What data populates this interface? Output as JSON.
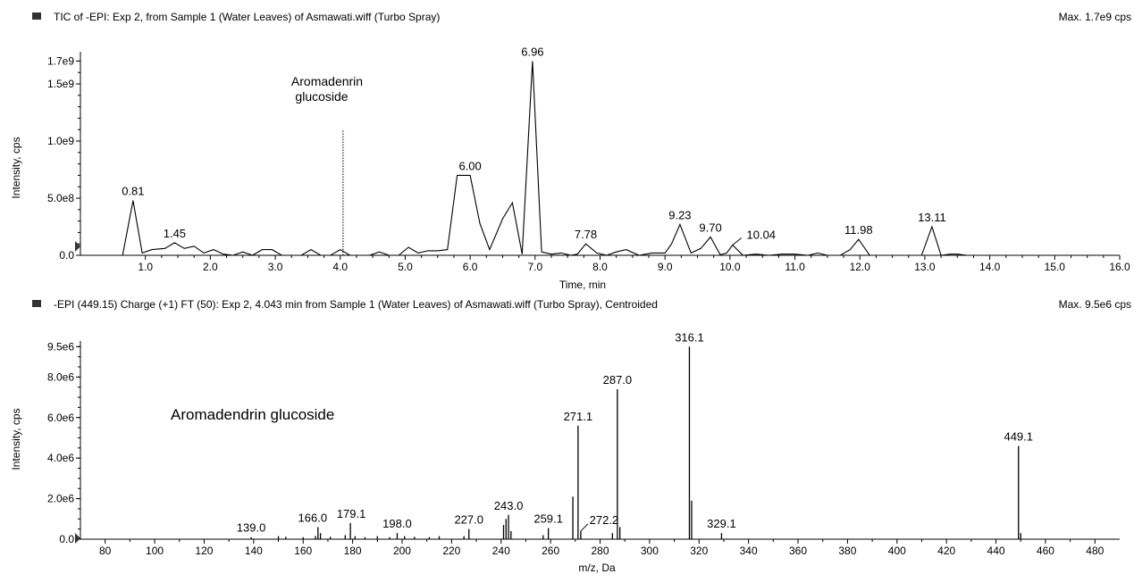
{
  "colors": {
    "ink": "#000000",
    "background": "#ffffff",
    "marker": "#333333"
  },
  "chart_data": [
    {
      "type": "line",
      "panel_title": "TIC of -EPI: Exp 2, from Sample 1 (Water Leaves) of Asmawati.wiff (Turbo Spray)",
      "max_label": "Max. 1.7e9 cps",
      "xlabel": "Time, min",
      "ylabel": "Intensity, cps",
      "xlim": [
        0,
        16
      ],
      "ylim": [
        0,
        1750000000.0
      ],
      "x_ticks": [
        1.0,
        2.0,
        3.0,
        4.0,
        5.0,
        6.0,
        7.0,
        8.0,
        9.0,
        10.0,
        11.0,
        12.0,
        13.0,
        14.0,
        15.0,
        16.0
      ],
      "x_tick_labels": [
        "1.0",
        "2.0",
        "3.0",
        "4.0",
        "5.0",
        "6.0",
        "7.0",
        "8.0",
        "9.0",
        "10.0",
        "11.0",
        "12.0",
        "13.0",
        "14.0",
        "15.0",
        "16.0"
      ],
      "y_ticks": [
        0,
        500000000.0,
        1000000000.0,
        1500000000.0,
        1700000000.0
      ],
      "y_tick_labels": [
        "0.0",
        "5.0e8",
        "1.0e9",
        "1.5e9",
        "1.7e9"
      ],
      "series": [
        {
          "x": [
            0.65,
            0.81,
            0.95,
            1.1,
            1.3,
            1.45,
            1.6,
            1.75,
            1.9,
            2.05,
            2.2,
            2.35,
            2.5,
            2.65,
            2.8,
            2.95,
            3.1,
            3.25,
            3.4,
            3.55,
            3.7,
            3.85,
            4.0,
            4.15,
            4.3,
            4.45,
            4.6,
            4.75,
            4.9,
            5.05,
            5.2,
            5.35,
            5.5,
            5.65,
            5.8,
            6.0,
            6.15,
            6.3,
            6.5,
            6.65,
            6.8,
            6.96,
            7.1,
            7.25,
            7.4,
            7.55,
            7.65,
            7.78,
            7.95,
            8.1,
            8.25,
            8.4,
            8.6,
            8.8,
            9.0,
            9.1,
            9.23,
            9.4,
            9.55,
            9.7,
            9.85,
            9.95,
            10.04,
            10.2,
            10.4,
            10.6,
            10.8,
            11.0,
            11.2,
            11.35,
            11.5,
            11.7,
            11.85,
            11.98,
            12.15,
            12.4,
            12.6,
            12.8,
            12.95,
            13.11,
            13.25,
            13.4,
            13.5,
            13.65,
            14.0,
            16.0
          ],
          "y": [
            0,
            480000000.0,
            20000000.0,
            50000000.0,
            60000000.0,
            110000000.0,
            60000000.0,
            80000000.0,
            20000000.0,
            50000000.0,
            10000000.0,
            0,
            30000000.0,
            0,
            50000000.0,
            50000000.0,
            0,
            0,
            0,
            50000000.0,
            0,
            0,
            50000000.0,
            0,
            0,
            0,
            30000000.0,
            0,
            0,
            70000000.0,
            20000000.0,
            40000000.0,
            40000000.0,
            50000000.0,
            700000000.0,
            700000000.0,
            280000000.0,
            50000000.0,
            320000000.0,
            460000000.0,
            10000000.0,
            1700000000.0,
            30000000.0,
            10000000.0,
            20000000.0,
            0,
            10000000.0,
            100000000.0,
            20000000.0,
            0,
            30000000.0,
            50000000.0,
            0,
            20000000.0,
            20000000.0,
            100000000.0,
            270000000.0,
            20000000.0,
            60000000.0,
            160000000.0,
            5000000.0,
            20000000.0,
            90000000.0,
            0,
            10000000.0,
            0,
            10000000.0,
            10000000.0,
            0,
            20000000.0,
            0,
            0,
            50000000.0,
            140000000.0,
            0,
            0,
            0,
            0,
            0,
            250000000.0,
            0,
            10000000.0,
            10000000.0,
            0,
            0,
            0
          ]
        }
      ],
      "peak_labels": [
        {
          "x": 0.81,
          "y": 480000000.0,
          "text": "0.81"
        },
        {
          "x": 1.45,
          "y": 110000000.0,
          "text": "1.45"
        },
        {
          "x": 6.0,
          "y": 700000000.0,
          "text": "6.00"
        },
        {
          "x": 6.96,
          "y": 1700000000.0,
          "text": "6.96"
        },
        {
          "x": 7.78,
          "y": 100000000.0,
          "text": "7.78"
        },
        {
          "x": 9.23,
          "y": 270000000.0,
          "text": "9.23"
        },
        {
          "x": 9.7,
          "y": 160000000.0,
          "text": "9.70"
        },
        {
          "x": 10.04,
          "y": 90000000.0,
          "text": "10.04"
        },
        {
          "x": 11.98,
          "y": 140000000.0,
          "text": "11.98"
        },
        {
          "x": 13.11,
          "y": 250000000.0,
          "text": "13.11"
        }
      ],
      "annotation": {
        "line1": "Aromadenrin",
        "line2": "glucoside",
        "marker_x": 4.043,
        "marker_top": 1100000000.0
      }
    },
    {
      "type": "bar",
      "panel_title": "-EPI (449.15) Charge (+1) FT (50): Exp 2, 4.043 min from Sample 1 (Water Leaves) of Asmawati.wiff (Turbo Spray), Centroided",
      "max_label": "Max. 9.5e6 cps",
      "xlabel": "m/z, Da",
      "ylabel": "Intensity, cps",
      "xlim": [
        70,
        490
      ],
      "ylim": [
        0,
        9600000.0
      ],
      "x_ticks": [
        80,
        100,
        120,
        140,
        160,
        180,
        200,
        220,
        240,
        260,
        280,
        300,
        320,
        340,
        360,
        380,
        400,
        420,
        440,
        460,
        480
      ],
      "x_tick_labels": [
        "80",
        "100",
        "120",
        "140",
        "160",
        "180",
        "200",
        "220",
        "240",
        "260",
        "280",
        "300",
        "320",
        "340",
        "360",
        "380",
        "400",
        "420",
        "440",
        "460",
        "480"
      ],
      "y_ticks": [
        0,
        2000000.0,
        4000000.0,
        6000000.0,
        8000000.0,
        9500000.0
      ],
      "y_tick_labels": [
        "0.0",
        "2.0e6",
        "4.0e6",
        "6.0e6",
        "8.0e6",
        "9.5e6"
      ],
      "peaks": {
        "mz": [
          139.0,
          150,
          153,
          160,
          165,
          166.0,
          167,
          171,
          177,
          179.1,
          181,
          185,
          190,
          195,
          198.0,
          201,
          205,
          211,
          215,
          225,
          227.0,
          241,
          242,
          243.0,
          244,
          257,
          259.1,
          269,
          271.1,
          272.2,
          285,
          287.0,
          288,
          316.1,
          317,
          329.1,
          449.1,
          450
        ],
        "intensity": [
          100000.0,
          150000.0,
          120000.0,
          100000.0,
          160000.0,
          600000.0,
          300000.0,
          120000.0,
          200000.0,
          800000.0,
          150000.0,
          100000.0,
          150000.0,
          100000.0,
          300000.0,
          150000.0,
          120000.0,
          100000.0,
          150000.0,
          150000.0,
          500000.0,
          700000.0,
          1000000.0,
          1200000.0,
          400000.0,
          200000.0,
          550000.0,
          2100000.0,
          5600000.0,
          400000.0,
          300000.0,
          7400000.0,
          600000.0,
          9500000.0,
          1900000.0,
          300000.0,
          4600000.0,
          300000.0
        ]
      },
      "peak_labels": [
        {
          "x": 139.0,
          "y": 100000.0,
          "text": "139.0"
        },
        {
          "x": 166.0,
          "y": 600000.0,
          "text": "166.0"
        },
        {
          "x": 179.1,
          "y": 800000.0,
          "text": "179.1"
        },
        {
          "x": 198.0,
          "y": 300000.0,
          "text": "198.0"
        },
        {
          "x": 227.0,
          "y": 500000.0,
          "text": "227.0"
        },
        {
          "x": 243.0,
          "y": 1200000.0,
          "text": "243.0"
        },
        {
          "x": 259.1,
          "y": 550000.0,
          "text": "259.1"
        },
        {
          "x": 271.1,
          "y": 5600000.0,
          "text": "271.1"
        },
        {
          "x": 272.2,
          "y": 400000.0,
          "text": "272.2"
        },
        {
          "x": 287.0,
          "y": 7400000.0,
          "text": "287.0"
        },
        {
          "x": 316.1,
          "y": 9500000.0,
          "text": "316.1"
        },
        {
          "x": 329.1,
          "y": 300000.0,
          "text": "329.1"
        },
        {
          "x": 449.1,
          "y": 4600000.0,
          "text": "449.1"
        }
      ],
      "annotation": {
        "text": "Aromadendrin glucoside"
      }
    }
  ]
}
